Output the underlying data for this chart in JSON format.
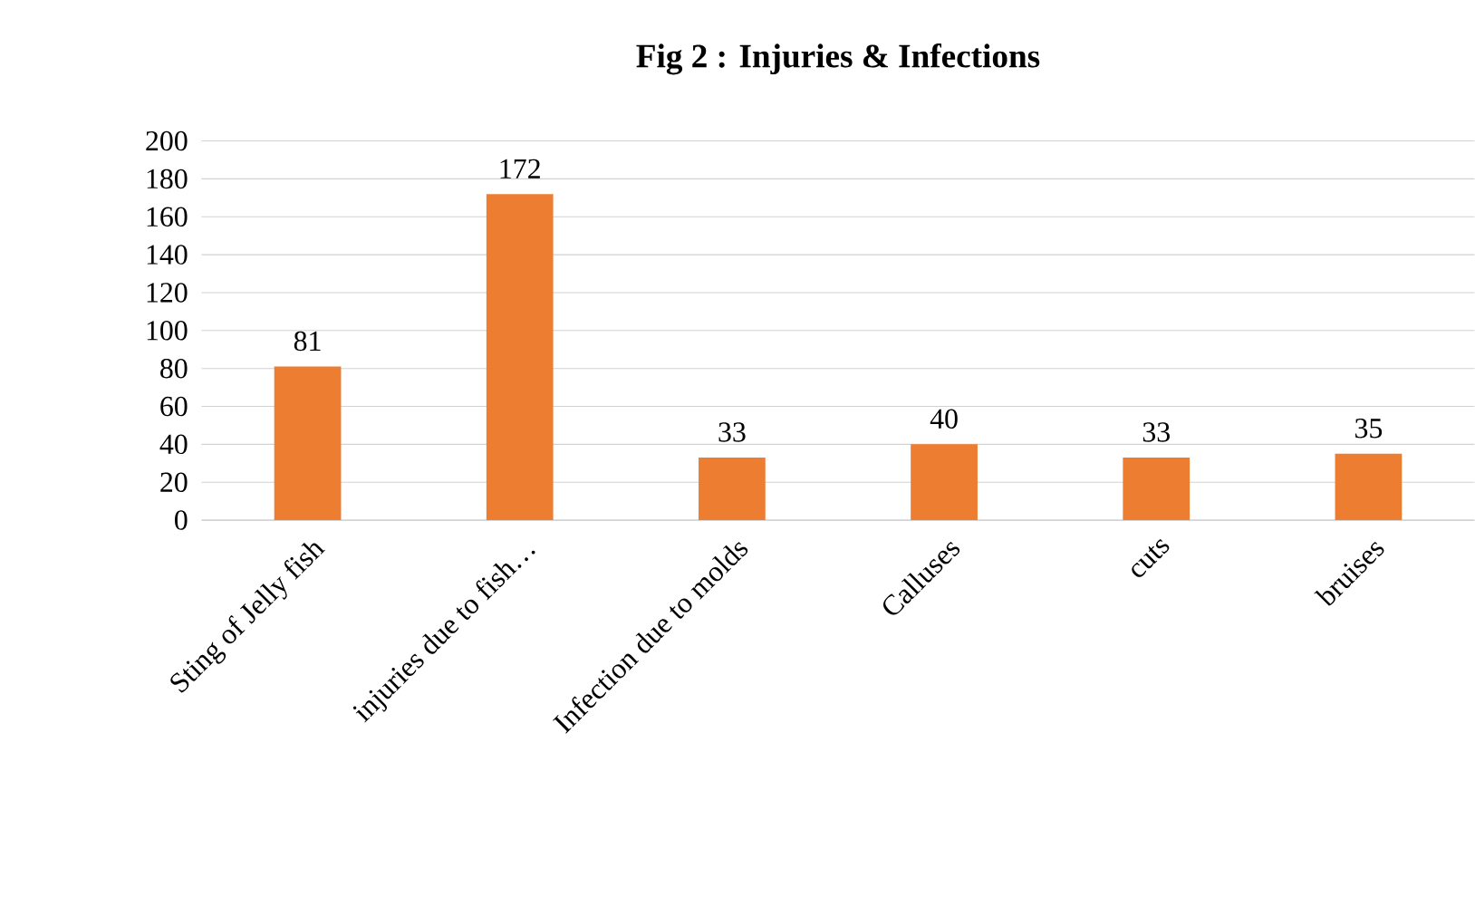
{
  "chart_data": {
    "type": "bar",
    "title": "Fig 2 : Injuries & Infections",
    "categories": [
      "Sting of Jelly fish",
      "injuries due to fish…",
      "Infection due to molds",
      "Calluses",
      "cuts",
      "bruises"
    ],
    "values": [
      81,
      172,
      33,
      40,
      33,
      35
    ],
    "color": "#ed7d31",
    "ylim": [
      0,
      200
    ],
    "yticks": [
      0,
      20,
      40,
      60,
      80,
      100,
      120,
      140,
      160,
      180,
      200
    ],
    "grid": "y",
    "data_labels": true
  }
}
